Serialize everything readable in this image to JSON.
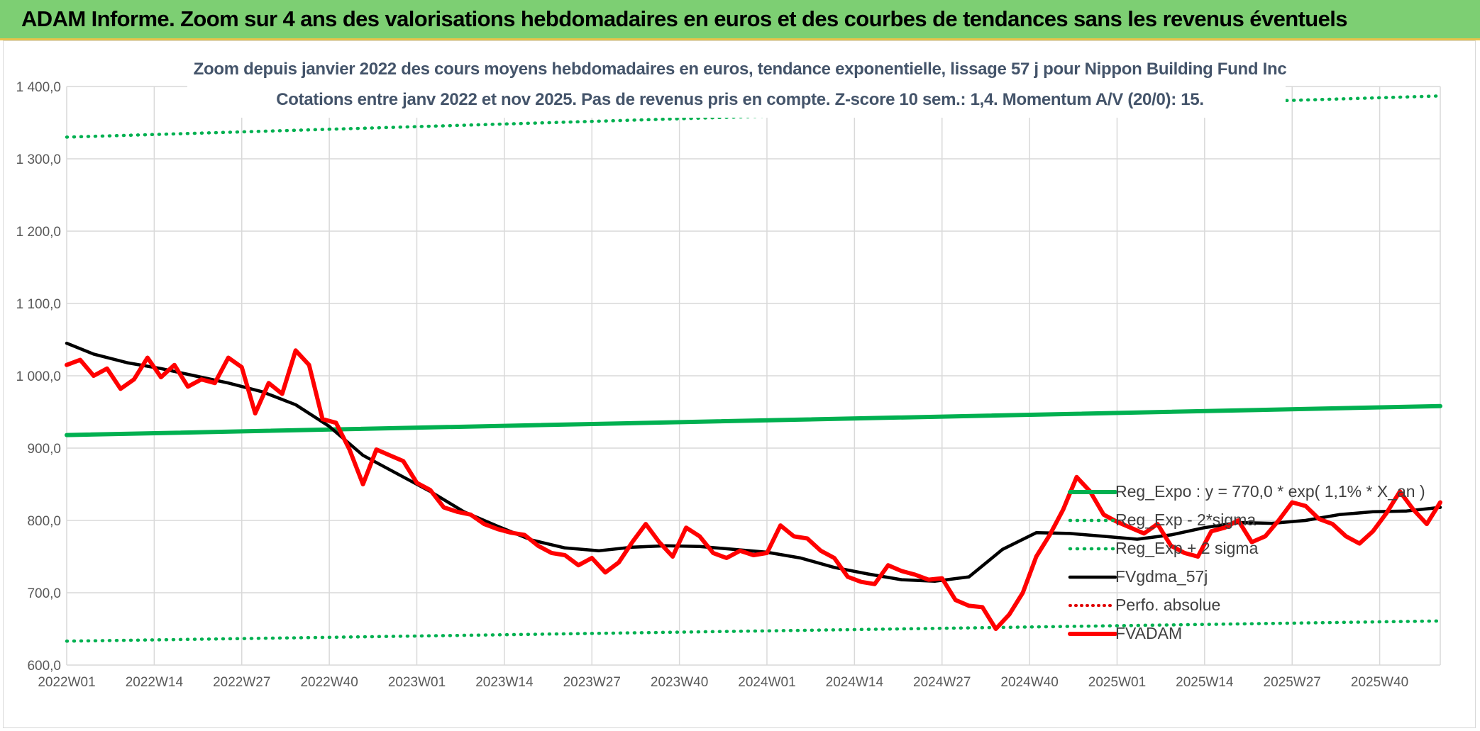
{
  "header": {
    "title": "ADAM Informe. Zoom sur 4 ans des valorisations hebdomadaires en euros et des courbes de tendances sans les revenus éventuels"
  },
  "chart_data": {
    "type": "line",
    "title": "Zoom depuis janvier 2022 des cours moyens hebdomadaires en euros, tendance exponentielle, lissage 57 j pour Nippon Building Fund Inc",
    "subtitle": "Cotations entre janv 2022 et nov 2025. Pas de revenus pris en compte. Z-score 10 sem.: 1,4. Momentum A/V (20/0): 15.",
    "xlabel": "",
    "ylabel": "",
    "ylim": [
      600,
      1400
    ],
    "yticks": [
      600,
      700,
      800,
      900,
      1000,
      1100,
      1200,
      1300,
      1400
    ],
    "ytick_labels": [
      "600,0",
      "700,0",
      "800,0",
      "900,0",
      "1 000,0",
      "1 100,0",
      "1 200,0",
      "1 300,0",
      "1 400,0"
    ],
    "x_range": [
      1,
      205
    ],
    "x_ticks": [
      1,
      14,
      27,
      40,
      53,
      66,
      79,
      92,
      105,
      118,
      131,
      144,
      157,
      170,
      183,
      196
    ],
    "x_tick_labels": [
      "2022W01",
      "2022W14",
      "2022W27",
      "2022W40",
      "2023W01",
      "2023W14",
      "2023W27",
      "2023W40",
      "2024W01",
      "2024W14",
      "2024W27",
      "2024W40",
      "2025W01",
      "2025W14",
      "2025W27",
      "2025W40"
    ],
    "grid": true,
    "legend_position": "right",
    "colors": {
      "reg_expo": "#00b050",
      "bands": "#00b050",
      "smooth": "#000000",
      "perfo": "#e00000",
      "price": "#ff0000",
      "title": "#44546a",
      "banner": "#7dcf73"
    },
    "series": [
      {
        "name": "Reg_Expo : y = 770,0 * exp( 1,1% *  X_an )",
        "style": "solid-thick",
        "x": [
          1,
          205
        ],
        "values": [
          918,
          958
        ]
      },
      {
        "name": "Reg_Exp - 2*sigma",
        "style": "dotted",
        "x": [
          1,
          205
        ],
        "values": [
          633,
          661
        ]
      },
      {
        "name": "Reg_Exp + 2 sigma",
        "style": "dotted",
        "x": [
          1,
          205
        ],
        "values": [
          1330,
          1387
        ]
      },
      {
        "name": "FVgdma_57j",
        "style": "solid",
        "x": [
          1,
          5,
          10,
          15,
          20,
          25,
          30,
          35,
          40,
          45,
          50,
          55,
          60,
          65,
          70,
          75,
          80,
          85,
          90,
          95,
          100,
          105,
          110,
          115,
          120,
          125,
          130,
          135,
          140,
          145,
          150,
          155,
          160,
          165,
          170,
          175,
          180,
          185,
          190,
          195,
          200,
          205
        ],
        "values": [
          1045,
          1030,
          1018,
          1010,
          1000,
          990,
          978,
          960,
          930,
          890,
          865,
          840,
          812,
          792,
          773,
          762,
          758,
          763,
          765,
          764,
          760,
          756,
          748,
          735,
          726,
          718,
          716,
          722,
          760,
          783,
          782,
          778,
          774,
          780,
          790,
          797,
          796,
          800,
          808,
          812,
          813,
          818
        ]
      },
      {
        "name": "Perfo. absolue",
        "style": "dotted",
        "x": [],
        "values": []
      },
      {
        "name": "FVADAM",
        "style": "solid-thick",
        "x": [
          1,
          3,
          5,
          7,
          9,
          11,
          13,
          15,
          17,
          19,
          21,
          23,
          25,
          27,
          29,
          31,
          33,
          35,
          37,
          39,
          41,
          43,
          45,
          47,
          49,
          51,
          53,
          55,
          57,
          59,
          61,
          63,
          65,
          67,
          69,
          71,
          73,
          75,
          77,
          79,
          81,
          83,
          85,
          87,
          89,
          91,
          93,
          95,
          97,
          99,
          101,
          103,
          105,
          107,
          109,
          111,
          113,
          115,
          117,
          119,
          121,
          123,
          125,
          127,
          129,
          131,
          133,
          135,
          137,
          139,
          141,
          143,
          145,
          147,
          149,
          151,
          153,
          155,
          157,
          159,
          161,
          163,
          165,
          167,
          169,
          171,
          173,
          175,
          177,
          179,
          181,
          183,
          185,
          187,
          189,
          191,
          193,
          195,
          197,
          199,
          201,
          203,
          205
        ],
        "values": [
          1015,
          1022,
          1000,
          1010,
          982,
          995,
          1025,
          998,
          1015,
          985,
          995,
          990,
          1025,
          1012,
          948,
          990,
          975,
          1035,
          1015,
          940,
          935,
          898,
          850,
          898,
          890,
          882,
          852,
          842,
          818,
          812,
          808,
          795,
          788,
          783,
          780,
          765,
          755,
          752,
          738,
          748,
          728,
          742,
          770,
          795,
          770,
          750,
          790,
          778,
          755,
          748,
          758,
          752,
          755,
          793,
          778,
          775,
          758,
          748,
          722,
          715,
          712,
          738,
          730,
          725,
          718,
          720,
          690,
          682,
          680,
          650,
          670,
          700,
          750,
          780,
          815,
          860,
          840,
          808,
          798,
          790,
          782,
          795,
          765,
          755,
          750,
          785,
          790,
          800,
          770,
          778,
          800,
          825,
          820,
          802,
          795,
          778,
          768,
          785,
          810,
          840,
          815,
          795,
          825
        ]
      }
    ]
  }
}
